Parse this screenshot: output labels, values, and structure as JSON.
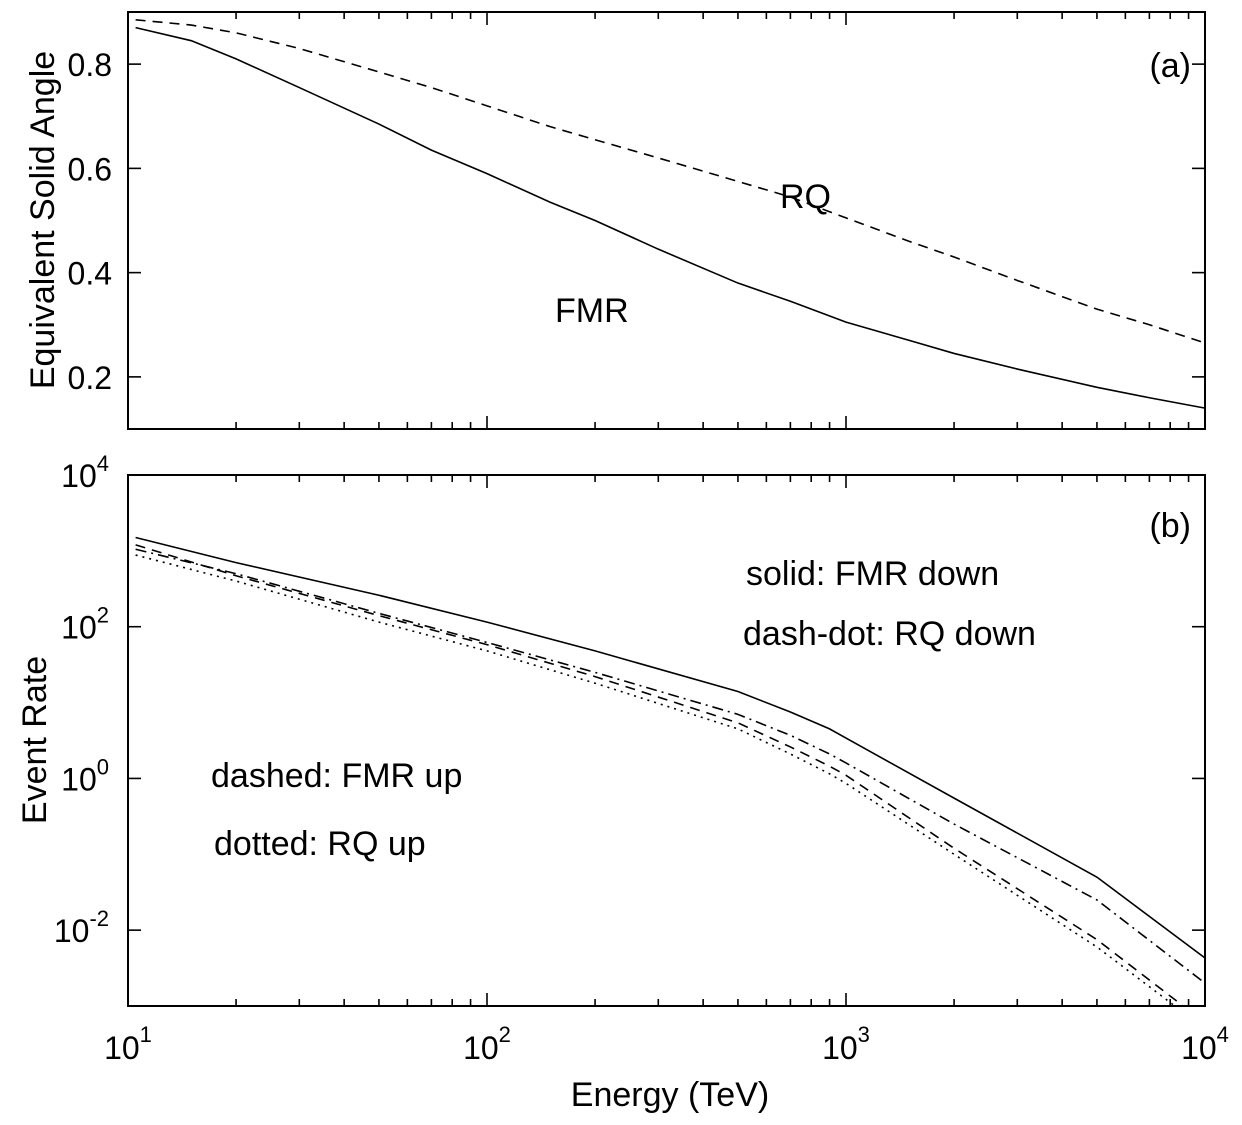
{
  "chart_data": [
    {
      "type": "line",
      "panel_label": "(a)",
      "title": "",
      "xlabel": "",
      "ylabel": "Equivalent Solid Angle",
      "xscale": "log",
      "xlim": [
        10,
        10000
      ],
      "ylim": [
        0.1,
        0.9
      ],
      "yticks": [
        0.2,
        0.4,
        0.6,
        0.8
      ],
      "ytick_labels": [
        "0.2",
        "0.4",
        "0.6",
        "0.8"
      ],
      "series": [
        {
          "name": "FMR",
          "style": "solid",
          "x": [
            10.5,
            15,
            20,
            30,
            50,
            70,
            100,
            150,
            200,
            300,
            500,
            700,
            1000,
            1500,
            2000,
            3000,
            5000,
            7000,
            10000
          ],
          "y": [
            0.87,
            0.845,
            0.81,
            0.755,
            0.685,
            0.635,
            0.59,
            0.535,
            0.5,
            0.445,
            0.38,
            0.345,
            0.305,
            0.27,
            0.245,
            0.215,
            0.18,
            0.16,
            0.14
          ]
        },
        {
          "name": "RQ",
          "style": "dashed",
          "x": [
            10.5,
            15,
            20,
            30,
            50,
            70,
            100,
            150,
            200,
            300,
            500,
            700,
            1000,
            1500,
            2000,
            3000,
            5000,
            7000,
            10000
          ],
          "y": [
            0.885,
            0.875,
            0.86,
            0.83,
            0.785,
            0.755,
            0.72,
            0.68,
            0.655,
            0.62,
            0.575,
            0.545,
            0.505,
            0.46,
            0.43,
            0.385,
            0.33,
            0.3,
            0.265
          ]
        }
      ],
      "annotations": [
        "RQ",
        "FMR"
      ]
    },
    {
      "type": "line",
      "panel_label": "(b)",
      "title": "",
      "xlabel": "Energy (TeV)",
      "ylabel": "Event Rate",
      "xscale": "log",
      "yscale": "log",
      "xlim": [
        10,
        10000
      ],
      "ylim": [
        0.001,
        10000
      ],
      "xticks": [
        10,
        100,
        1000,
        10000
      ],
      "xtick_labels": [
        {
          "base": "10",
          "exp": "1"
        },
        {
          "base": "10",
          "exp": "2"
        },
        {
          "base": "10",
          "exp": "3"
        },
        {
          "base": "10",
          "exp": "4"
        }
      ],
      "yticks": [
        0.01,
        1,
        100,
        10000
      ],
      "ytick_labels": [
        {
          "base": "10",
          "exp": "-2"
        },
        {
          "base": "10",
          "exp": "0"
        },
        {
          "base": "10",
          "exp": "2"
        },
        {
          "base": "10",
          "exp": "4"
        }
      ],
      "series": [
        {
          "name": "FMR down",
          "style": "solid",
          "x": [
            10.5,
            20,
            50,
            100,
            200,
            500,
            700,
            900,
            1000,
            2000,
            5000,
            10000
          ],
          "y": [
            1500,
            700,
            260,
            115,
            48,
            14,
            7.5,
            4.5,
            3.4,
            0.55,
            0.05,
            0.0043
          ]
        },
        {
          "name": "RQ down",
          "style": "dash-dot",
          "x": [
            10.5,
            20,
            50,
            100,
            200,
            500,
            700,
            900,
            1000,
            2000,
            5000,
            10000
          ],
          "y": [
            1050,
            500,
            150,
            62,
            25,
            7,
            3.7,
            2.1,
            1.6,
            0.25,
            0.025,
            0.002
          ]
        },
        {
          "name": "FMR up",
          "style": "dashed",
          "x": [
            10.5,
            20,
            50,
            100,
            200,
            500,
            700,
            900,
            1000,
            2000,
            5000,
            10000
          ],
          "y": [
            1200,
            470,
            140,
            58,
            22,
            5.4,
            2.6,
            1.45,
            1.1,
            0.12,
            0.0075,
            0.0006
          ]
        },
        {
          "name": "RQ up",
          "style": "dotted",
          "x": [
            10.5,
            20,
            50,
            100,
            200,
            500,
            700,
            900,
            1000,
            2000,
            5000,
            10000
          ],
          "y": [
            880,
            400,
            115,
            48,
            18,
            4.5,
            2.1,
            1.15,
            0.86,
            0.1,
            0.006,
            0.0005
          ]
        }
      ],
      "annotations": [
        "solid: FMR down",
        "dash-dot: RQ down",
        "dashed: FMR up",
        "dotted: RQ up"
      ]
    }
  ]
}
